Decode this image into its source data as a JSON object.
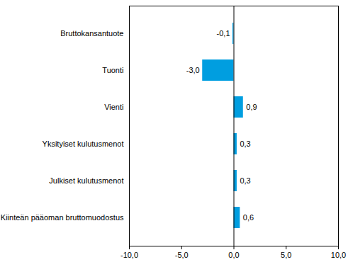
{
  "chart_data": {
    "type": "bar",
    "orientation": "horizontal",
    "categories": [
      "Bruttokansantuote",
      "Tuonti",
      "Vienti",
      "Yksityiset kulutusmenot",
      "Julkiset kulutusmenot",
      "Kiinteän pääoman bruttomuodostus"
    ],
    "values": [
      -0.1,
      -3.0,
      0.9,
      0.3,
      0.3,
      0.6
    ],
    "value_labels": [
      "-0,1",
      "-3,0",
      "0,9",
      "0,3",
      "0,3",
      "0,6"
    ],
    "data_labels": true,
    "color": "#009ee0",
    "xlim": [
      -10,
      10
    ],
    "xticks": [
      {
        "value": -10,
        "label": "-10,0"
      },
      {
        "value": -5,
        "label": "-5,0"
      },
      {
        "value": 0,
        "label": "0,0"
      },
      {
        "value": 5,
        "label": "5,0"
      },
      {
        "value": 10,
        "label": "10,0"
      }
    ],
    "grid": false
  }
}
